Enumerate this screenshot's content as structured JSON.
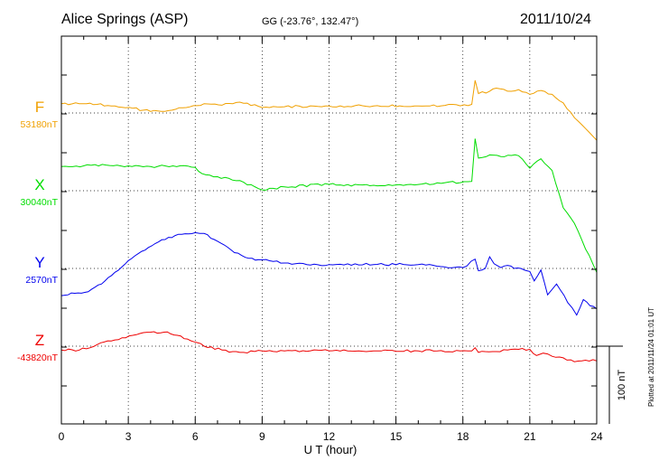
{
  "header": {
    "station": "Alice Springs (ASP)",
    "coords": "GG (-23.76°, 132.47°)",
    "date": "2011/10/24"
  },
  "footer": {
    "plotted": "Plotted at 2011/11/24 01:01 UT"
  },
  "chart_data": {
    "type": "line",
    "xlabel": "U T (hour)",
    "xlim": [
      0,
      24
    ],
    "xticks": [
      0,
      3,
      6,
      9,
      12,
      15,
      18,
      21,
      24
    ],
    "scale_bar": {
      "label": "100 nT",
      "value_nT": 100
    },
    "grid": "dotted",
    "series": [
      {
        "name": "F",
        "baseline": "53180nT",
        "baseline_nT": 53180,
        "color": "#f0a000",
        "x": [
          0,
          0.8,
          1.6,
          2.4,
          3.2,
          4.0,
          4.8,
          5.6,
          6.4,
          7.2,
          8.0,
          9.0,
          10.0,
          12.0,
          14.0,
          16.0,
          18.4,
          18.55,
          18.7,
          19.2,
          19.5,
          20.0,
          20.5,
          21.0,
          21.5,
          22.0,
          22.5,
          23.0,
          23.5,
          24.0
        ],
        "y": [
          12,
          12,
          11,
          9,
          6,
          2,
          3,
          7,
          12,
          10,
          14,
          7,
          8,
          9,
          9,
          9,
          11,
          42,
          25,
          28,
          32,
          28,
          30,
          24,
          29,
          24,
          13,
          -6,
          -20,
          -35
        ]
      },
      {
        "name": "X",
        "baseline": "30040nT",
        "baseline_nT": 30040,
        "color": "#00dd00",
        "x": [
          0,
          1,
          2,
          3,
          4,
          5,
          6,
          6.3,
          7,
          8,
          9,
          10,
          12,
          14,
          16,
          18.4,
          18.55,
          18.7,
          19.2,
          19.7,
          20.5,
          21.0,
          21.5,
          22.0,
          22.5,
          23.0,
          23.5,
          24.0
        ],
        "y": [
          31,
          32,
          33,
          32,
          31,
          32,
          30,
          22,
          18,
          13,
          1,
          5,
          8,
          7,
          8,
          12,
          67,
          42,
          46,
          44,
          45,
          29,
          41,
          26,
          -22,
          -42,
          -75,
          -105
        ]
      },
      {
        "name": "Y",
        "baseline": "2570nT",
        "baseline_nT": 2570,
        "color": "#0000ee",
        "x": [
          0,
          0.6,
          1.2,
          1.8,
          2.4,
          3.0,
          3.6,
          4.2,
          4.8,
          5.4,
          6.0,
          6.4,
          7.0,
          7.6,
          8.4,
          9.0,
          10.0,
          11.0,
          12.0,
          14.0,
          16.0,
          18.0,
          18.55,
          18.7,
          19.0,
          19.2,
          19.4,
          19.7,
          20.0,
          20.3,
          20.6,
          21.0,
          21.2,
          21.5,
          21.8,
          22.2,
          22.7,
          23.1,
          23.4,
          23.7,
          24.0
        ],
        "y": [
          -35,
          -32,
          -30,
          -20,
          -5,
          10,
          22,
          32,
          40,
          44,
          46,
          45,
          35,
          24,
          13,
          11,
          7,
          5,
          5,
          5,
          5,
          1,
          12,
          -3,
          0,
          15,
          6,
          1,
          4,
          0,
          0,
          -4,
          -16,
          -2,
          -34,
          -20,
          -44,
          -60,
          -40,
          -48,
          -52
        ]
      },
      {
        "name": "Z",
        "baseline": "-43820nT",
        "baseline_nT": -43820,
        "color": "#ee0000",
        "x": [
          0,
          0.8,
          1.6,
          2.4,
          3.2,
          4.0,
          4.6,
          5.2,
          5.8,
          6.4,
          7.2,
          8.0,
          9.0,
          10.0,
          12.0,
          14.0,
          16.0,
          18.4,
          18.55,
          18.7,
          19.0,
          20.0,
          21.0,
          21.3,
          21.6,
          22.0,
          22.5,
          23.0,
          23.5,
          24.0
        ],
        "y": [
          -5,
          -5,
          2,
          8,
          14,
          18,
          18,
          14,
          7,
          0,
          -5,
          -8,
          -6,
          -6,
          -6,
          -6,
          -6,
          -6,
          -2,
          -8,
          -7,
          -5,
          -4,
          -12,
          -9,
          -13,
          -15,
          -20,
          -18,
          -19
        ]
      }
    ]
  }
}
